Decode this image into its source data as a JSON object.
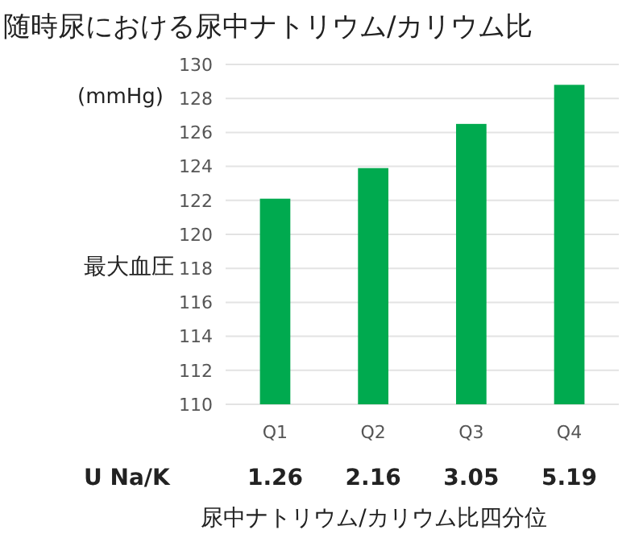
{
  "chart_data": {
    "type": "bar",
    "title": "随時尿における尿中ナトリウム/カリウム比",
    "xlabel": "尿中ナトリウム/カリウム比四分位",
    "ylabel": "最大血圧",
    "categories": [
      "Q1",
      "Q2",
      "Q3",
      "Q4"
    ],
    "values": [
      122.1,
      123.9,
      126.5,
      128.8
    ],
    "color": "#00aa4f",
    "ylim": [
      110,
      130
    ],
    "yticks": [
      110,
      112,
      114,
      116,
      118,
      120,
      122,
      124,
      126,
      128,
      130
    ],
    "grid": "y",
    "annotations": [
      "(mmHg)",
      "U Na/K",
      "1.26",
      "2.16",
      "3.05",
      "5.19"
    ]
  }
}
